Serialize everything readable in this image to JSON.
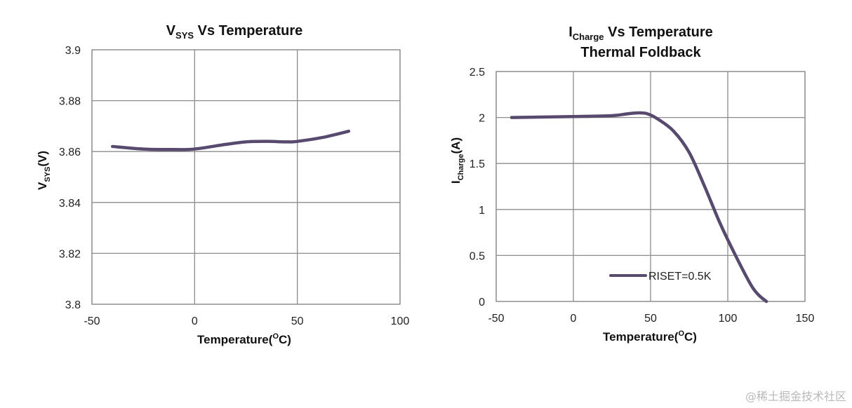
{
  "chart_data": [
    {
      "type": "line",
      "title_main": "V",
      "title_sub": "SYS",
      "title_rest": " Vs  Temperature",
      "xlabel_main": "Temperature(",
      "xlabel_sup": "O",
      "xlabel_rest": "C)",
      "ylabel_main": "V",
      "ylabel_sub": "SYS",
      "ylabel_rest": "(V)",
      "xlim": [
        -50,
        100
      ],
      "ylim": [
        3.8,
        3.9
      ],
      "xticks": [
        "-50",
        "0",
        "50",
        "100"
      ],
      "yticks": [
        "3.8",
        "3.82",
        "3.84",
        "3.86",
        "3.88",
        "3.9"
      ],
      "grid": true,
      "series": [
        {
          "name": "VSYS",
          "color": "#584a6e",
          "x": [
            -40,
            -25,
            -10,
            0,
            15,
            25,
            35,
            45,
            50,
            62,
            75
          ],
          "y": [
            3.862,
            3.861,
            3.8608,
            3.861,
            3.8628,
            3.8638,
            3.864,
            3.8638,
            3.864,
            3.8655,
            3.868
          ]
        }
      ]
    },
    {
      "type": "line",
      "title_main": "I",
      "title_sub": "Charge",
      "title_rest": " Vs Temperature",
      "title_line2": "Thermal Foldback",
      "xlabel_main": "Temperature(",
      "xlabel_sup": "O",
      "xlabel_rest": "C)",
      "ylabel_main": "I",
      "ylabel_sub": "Charge",
      "ylabel_rest": "(A)",
      "xlim": [
        -50,
        150
      ],
      "ylim": [
        0,
        2.5
      ],
      "xticks": [
        "-50",
        "0",
        "50",
        "100",
        "150"
      ],
      "yticks": [
        "0",
        "0.5",
        "1",
        "1.5",
        "2",
        "2.5"
      ],
      "grid": true,
      "legend": "bottom-center",
      "series": [
        {
          "name": "RISET=0.5K",
          "color": "#584a6e",
          "x": [
            -40,
            0,
            25,
            35,
            42,
            48,
            55,
            65,
            75,
            85,
            95,
            105,
            115,
            120,
            125
          ],
          "y": [
            2.0,
            2.01,
            2.02,
            2.04,
            2.05,
            2.04,
            1.98,
            1.85,
            1.62,
            1.25,
            0.85,
            0.5,
            0.18,
            0.07,
            0.0
          ]
        }
      ]
    }
  ],
  "watermark": "@稀土掘金技术社区"
}
